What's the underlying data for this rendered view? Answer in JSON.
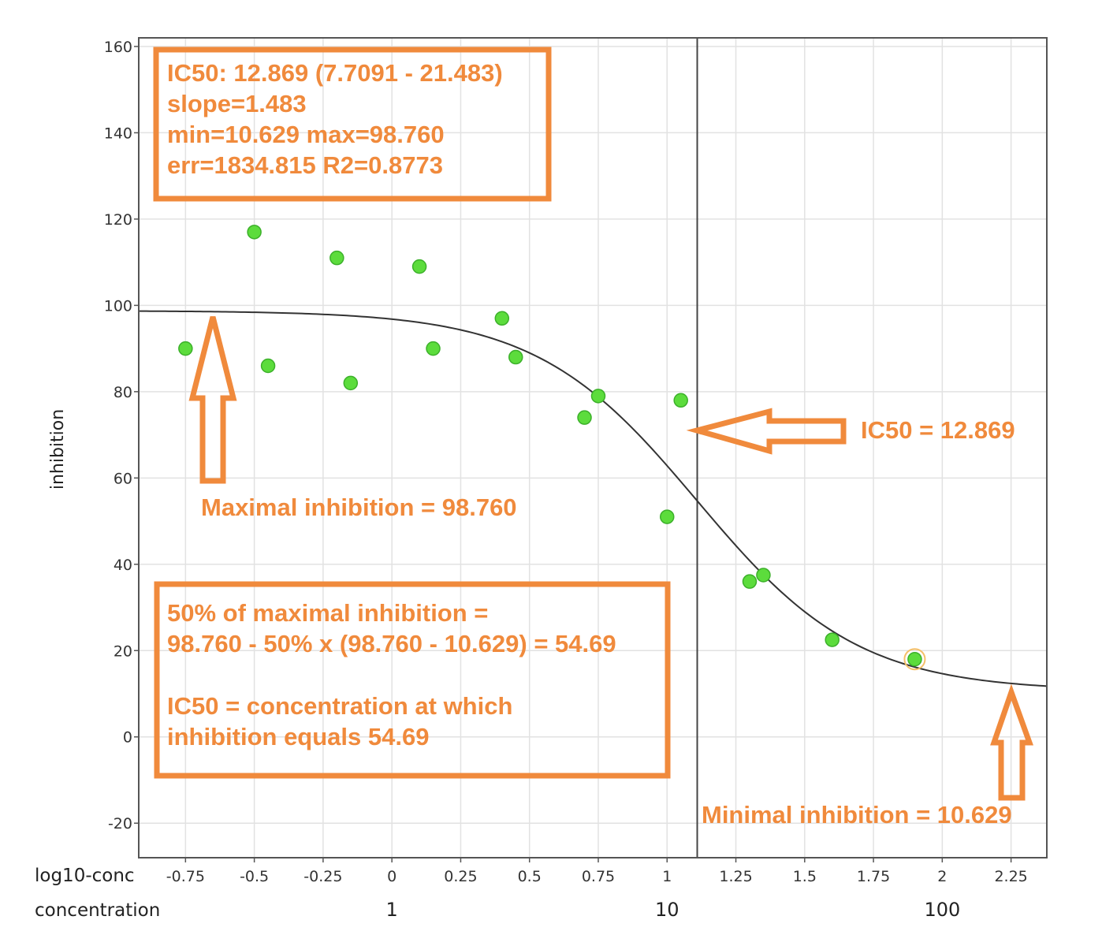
{
  "chart_data": {
    "type": "scatter",
    "title": "",
    "ylabel": "inhibition",
    "xlabel": "log10-conc",
    "x2label": "concentration",
    "xlim": [
      -0.92,
      2.38
    ],
    "ylim": [
      -28,
      162
    ],
    "yticks": [
      160,
      140,
      120,
      100,
      80,
      60,
      40,
      20,
      0,
      -20
    ],
    "xticks": [
      -0.75,
      -0.5,
      -0.25,
      0,
      0.25,
      0.5,
      0.75,
      1,
      1.25,
      1.5,
      1.75,
      2,
      2.25
    ],
    "xtick_labels": [
      "-0.75",
      "-0.5",
      "-0.25",
      "0",
      "0.25",
      "0.5",
      "0.75",
      "1",
      "1.25",
      "1.5",
      "1.75",
      "2",
      "2.25"
    ],
    "conc_ticks": [
      {
        "x": 0,
        "label": "1"
      },
      {
        "x": 1,
        "label": "10"
      },
      {
        "x": 2,
        "label": "100"
      }
    ],
    "grid": true,
    "series": [
      {
        "points": [
          {
            "x": -0.75,
            "y": 90
          },
          {
            "x": -0.5,
            "y": 117
          },
          {
            "x": -0.45,
            "y": 86
          },
          {
            "x": -0.2,
            "y": 111
          },
          {
            "x": -0.15,
            "y": 82
          },
          {
            "x": 0.1,
            "y": 109
          },
          {
            "x": 0.15,
            "y": 90
          },
          {
            "x": 0.4,
            "y": 97
          },
          {
            "x": 0.45,
            "y": 88
          },
          {
            "x": 0.7,
            "y": 74
          },
          {
            "x": 0.75,
            "y": 79
          },
          {
            "x": 1.0,
            "y": 51
          },
          {
            "x": 1.05,
            "y": 78
          },
          {
            "x": 1.3,
            "y": 36
          },
          {
            "x": 1.35,
            "y": 37.5
          },
          {
            "x": 1.6,
            "y": 22.5
          },
          {
            "x": 1.9,
            "y": 18
          }
        ],
        "color": "#5cdc3c"
      }
    ],
    "fit": {
      "ic50": 12.869,
      "log10_ic50": 1.1096,
      "slope": 1.483,
      "min": 10.629,
      "max": 98.76,
      "color": "#333333"
    },
    "highlight_point_index": 16,
    "accent_color": "#f08a3c"
  },
  "annotations": {
    "summary": [
      "IC50: 12.869 (7.7091 - 21.483)",
      "slope=1.483",
      "min=10.629 max=98.760",
      "err=1834.815 R2=0.8773"
    ],
    "ic50_label": "IC50 = 12.869",
    "max_label": "Maximal inhibition = 98.760",
    "min_label": "Minimal inhibition = 10.629",
    "explanation": [
      "50% of maximal inhibition =",
      "98.760 - 50% x (98.760 - 10.629) = 54.69",
      "",
      "IC50 = concentration at which",
      "inhibition equals 54.69"
    ]
  }
}
